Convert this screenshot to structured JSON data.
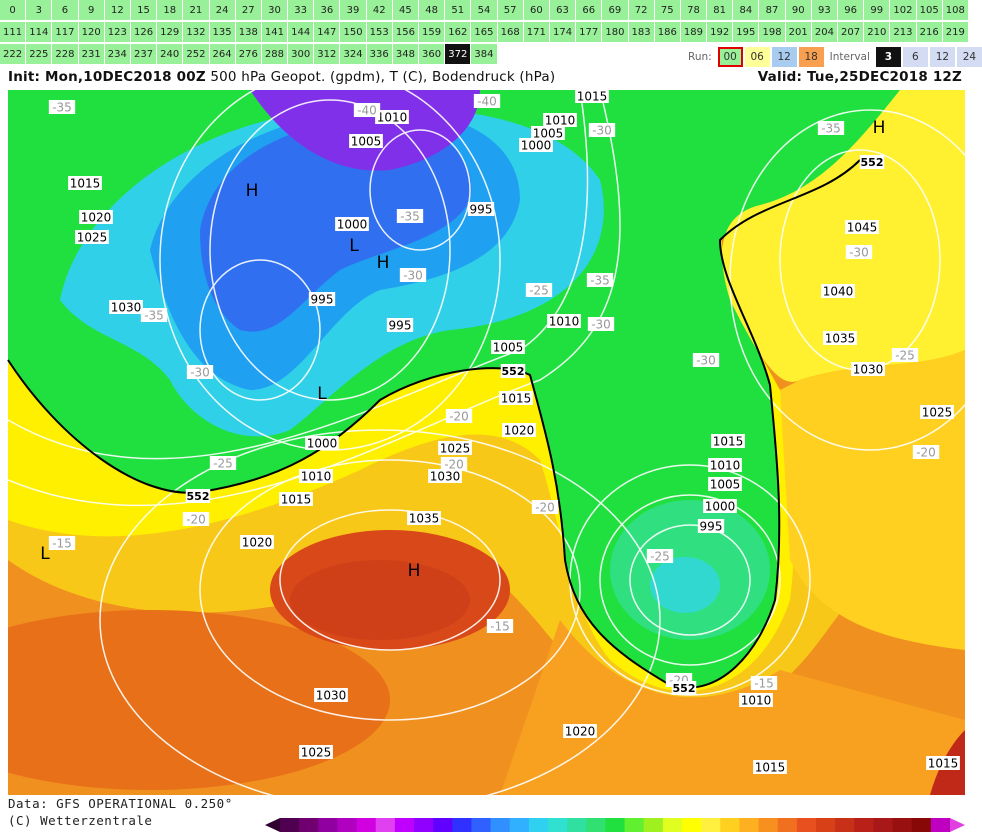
{
  "hours": {
    "rows": [
      [
        0,
        3,
        6,
        9,
        12,
        15,
        18,
        21,
        24,
        27,
        30,
        33,
        36,
        39,
        42,
        45,
        48,
        51,
        54,
        57,
        60,
        63,
        66,
        69,
        72,
        75,
        78,
        81,
        84,
        87,
        90,
        93,
        96,
        99,
        102,
        105,
        108
      ],
      [
        111,
        114,
        117,
        120,
        123,
        126,
        129,
        132,
        135,
        138,
        141,
        144,
        147,
        150,
        153,
        156,
        159,
        162,
        165,
        168,
        171,
        174,
        177,
        180,
        183,
        186,
        189,
        192,
        195,
        198,
        201,
        204,
        207,
        210,
        213,
        216,
        219
      ],
      [
        222,
        225,
        228,
        231,
        234,
        237,
        240,
        252,
        264,
        276,
        288,
        300,
        312,
        324,
        336,
        348,
        360,
        372,
        384
      ]
    ],
    "selected": 372
  },
  "selector": {
    "run_label": "Run:",
    "runs": [
      "00",
      "06",
      "12",
      "18"
    ],
    "selected_run": "00",
    "interval_label": "Interval",
    "intervals": [
      3,
      6,
      12,
      24
    ],
    "selected_interval": 3
  },
  "header": {
    "init": "Init: Mon,10DEC2018 00Z",
    "fields": "500 hPa Geopot. (gpdm), T (C), Bodendruck (hPa)",
    "valid": "Valid: Tue,25DEC2018 12Z"
  },
  "map": {
    "pressure_labels": [
      "1015",
      "1020",
      "1025",
      "1030",
      "1005",
      "1010",
      "1000",
      "995",
      "995",
      "995",
      "1000",
      "1005",
      "1010",
      "1015",
      "1010",
      "1005",
      "1015",
      "1020",
      "1025",
      "1030",
      "1000",
      "1010",
      "1015",
      "1020",
      "1035",
      "1030",
      "1025",
      "1020",
      "1015",
      "1015",
      "1010",
      "1015",
      "1010",
      "1005",
      "1000",
      "995",
      "1045",
      "1040",
      "1035",
      "1030",
      "1025"
    ],
    "temperature_labels": [
      "-35",
      "-40",
      "-40",
      "-30",
      "-35",
      "-35",
      "-30",
      "-35",
      "-25",
      "-30",
      "-30",
      "-25",
      "-30",
      "-35",
      "-30",
      "-20",
      "-20",
      "-25",
      "-20",
      "-20",
      "-20",
      "-25",
      "-15",
      "-15",
      "-20",
      "-15"
    ],
    "height_labels": [
      "552",
      "552",
      "552",
      "552"
    ],
    "centers": [
      "H",
      "L",
      "H",
      "L",
      "H",
      "L",
      "H"
    ]
  },
  "footer": {
    "source": "Data: GFS OPERATIONAL 0.250°",
    "copyright": "(C) Wetterzentrale"
  }
}
